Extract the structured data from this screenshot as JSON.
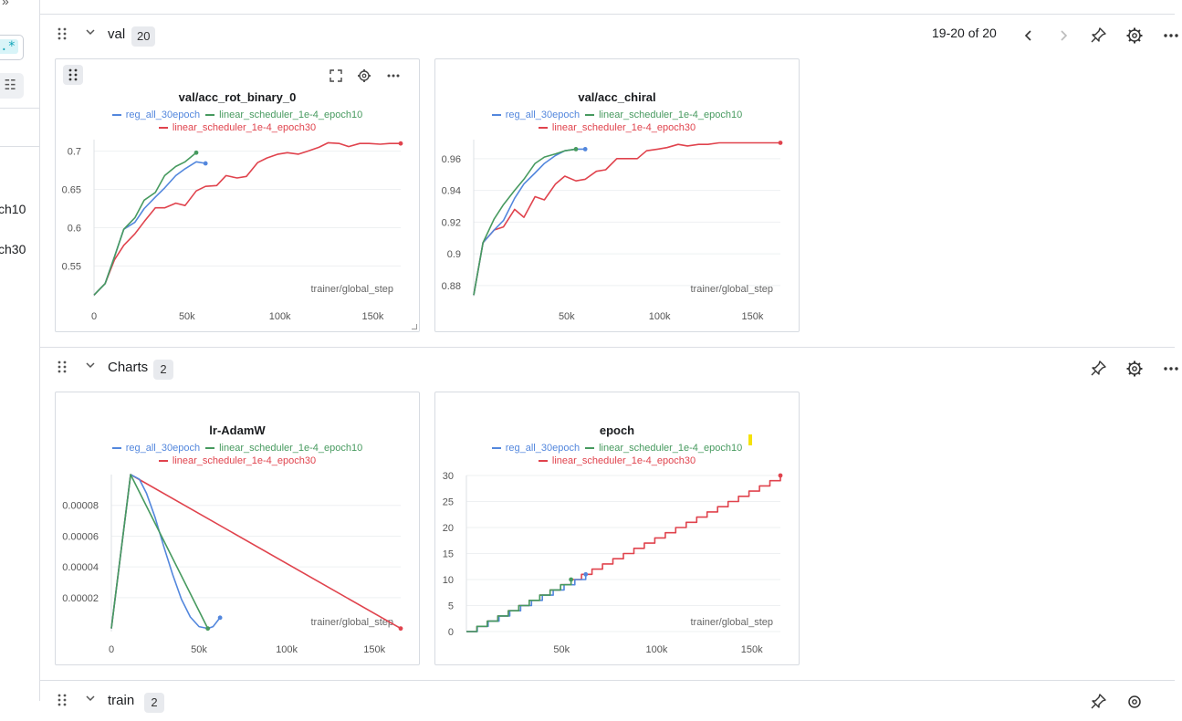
{
  "sidebar": {
    "regex_label": ".*",
    "legend_tail": [
      "ch10",
      "ch30"
    ]
  },
  "sections": [
    {
      "title": "val",
      "count": "20",
      "pager": "19-20 of 20"
    },
    {
      "title": "Charts",
      "count": "2"
    },
    {
      "title": "train",
      "count": "2"
    }
  ],
  "legend_labels": {
    "a": "reg_all_30epoch",
    "b": "linear_scheduler_1e-4_epoch10",
    "c": "linear_scheduler_1e-4_epoch30"
  },
  "colors": {
    "a": "#5387dd",
    "b": "#479a5f",
    "c": "#e0434d"
  },
  "panels": [
    {
      "title": "val/acc_rot_binary_0",
      "xlabel": "trainer/global_step"
    },
    {
      "title": "val/acc_chiral",
      "xlabel": "trainer/global_step"
    },
    {
      "title": "lr-AdamW",
      "xlabel": "trainer/global_step"
    },
    {
      "title": "epoch",
      "xlabel": "trainer/global_step"
    }
  ],
  "chart_data": [
    {
      "type": "line",
      "title": "val/acc_rot_binary_0",
      "xlabel": "trainer/global_step",
      "xlim": [
        0,
        165000
      ],
      "ylim": [
        0.51,
        0.715
      ],
      "xticks": [
        0,
        50000,
        100000,
        150000
      ],
      "xtick_labels": [
        "0",
        "50k",
        "100k",
        "150k"
      ],
      "yticks": [
        0.55,
        0.6,
        0.65,
        0.7
      ],
      "ytick_labels": [
        "0.55",
        "0.6",
        "0.65",
        "0.7"
      ],
      "series": [
        {
          "name": "reg_all_30epoch",
          "x": [
            0,
            6000,
            11000,
            16000,
            22000,
            27000,
            33000,
            38000,
            44000,
            49000,
            55000,
            60000
          ],
          "y": [
            0.512,
            0.527,
            0.562,
            0.598,
            0.607,
            0.625,
            0.64,
            0.652,
            0.668,
            0.677,
            0.686,
            0.684
          ]
        },
        {
          "name": "linear_scheduler_1e-4_epoch10",
          "x": [
            0,
            6000,
            11000,
            16000,
            22000,
            27000,
            33000,
            38000,
            44000,
            49000,
            55000
          ],
          "y": [
            0.512,
            0.527,
            0.562,
            0.598,
            0.613,
            0.636,
            0.646,
            0.668,
            0.68,
            0.686,
            0.698
          ]
        },
        {
          "name": "linear_scheduler_1e-4_epoch30",
          "x": [
            0,
            6000,
            11000,
            16000,
            22000,
            27000,
            33000,
            38000,
            44000,
            49000,
            55000,
            60000,
            66000,
            71000,
            77000,
            82000,
            88000,
            93000,
            99000,
            104000,
            110000,
            115000,
            121000,
            126000,
            132000,
            137000,
            143000,
            148000,
            154000,
            159000,
            165000
          ],
          "y": [
            0.512,
            0.527,
            0.558,
            0.577,
            0.592,
            0.608,
            0.626,
            0.626,
            0.632,
            0.629,
            0.648,
            0.654,
            0.655,
            0.668,
            0.665,
            0.667,
            0.685,
            0.691,
            0.696,
            0.698,
            0.696,
            0.7,
            0.705,
            0.711,
            0.71,
            0.706,
            0.71,
            0.71,
            0.709,
            0.71,
            0.71
          ]
        }
      ]
    },
    {
      "type": "line",
      "title": "val/acc_chiral",
      "xlabel": "trainer/global_step",
      "xlim": [
        0,
        165000
      ],
      "ylim": [
        0.873,
        0.972
      ],
      "xticks": [
        50000,
        100000,
        150000
      ],
      "xtick_labels": [
        "50k",
        "100k",
        "150k"
      ],
      "yticks": [
        0.88,
        0.9,
        0.92,
        0.94,
        0.96
      ],
      "ytick_labels": [
        "0.88",
        "0.9",
        "0.92",
        "0.94",
        "0.96"
      ],
      "series": [
        {
          "name": "reg_all_30epoch",
          "x": [
            0,
            5000,
            11000,
            16000,
            22000,
            27000,
            33000,
            38000,
            44000,
            49000,
            55000,
            60000
          ],
          "y": [
            0.874,
            0.907,
            0.915,
            0.921,
            0.935,
            0.944,
            0.951,
            0.957,
            0.962,
            0.965,
            0.966,
            0.966
          ]
        },
        {
          "name": "linear_scheduler_1e-4_epoch10",
          "x": [
            0,
            5000,
            11000,
            16000,
            22000,
            27000,
            33000,
            38000,
            44000,
            49000,
            55000
          ],
          "y": [
            0.874,
            0.907,
            0.922,
            0.931,
            0.94,
            0.947,
            0.957,
            0.961,
            0.963,
            0.965,
            0.966
          ]
        },
        {
          "name": "linear_scheduler_1e-4_epoch30",
          "x": [
            0,
            5000,
            11000,
            16000,
            22000,
            27000,
            33000,
            38000,
            44000,
            49000,
            55000,
            60000,
            66000,
            71000,
            77000,
            82000,
            88000,
            93000,
            99000,
            104000,
            110000,
            115000,
            121000,
            126000,
            132000,
            137000,
            143000,
            148000,
            154000,
            159000,
            165000
          ],
          "y": [
            0.874,
            0.907,
            0.915,
            0.917,
            0.928,
            0.923,
            0.936,
            0.934,
            0.944,
            0.949,
            0.946,
            0.947,
            0.952,
            0.953,
            0.96,
            0.96,
            0.96,
            0.965,
            0.966,
            0.967,
            0.969,
            0.968,
            0.969,
            0.969,
            0.97,
            0.97,
            0.97,
            0.97,
            0.97,
            0.97,
            0.97
          ]
        }
      ]
    },
    {
      "type": "line",
      "title": "lr-AdamW",
      "xlabel": "trainer/global_step",
      "xlim": [
        0,
        165000
      ],
      "ylim": [
        -2e-06,
        0.0001
      ],
      "xticks": [
        0,
        50000,
        100000,
        150000
      ],
      "xtick_labels": [
        "0",
        "50k",
        "100k",
        "150k"
      ],
      "yticks": [
        2e-05,
        4e-05,
        6e-05,
        8e-05
      ],
      "ytick_labels": [
        "0.00002",
        "0.00004",
        "0.00006",
        "0.00008"
      ],
      "series": [
        {
          "name": "reg_all_30epoch",
          "x": [
            0,
            11000,
            16000,
            20000,
            25000,
            30000,
            35000,
            40000,
            45000,
            50000,
            55000,
            58000,
            62000
          ],
          "y": [
            0,
            0.0001,
            9.7e-05,
            8.8e-05,
            7.2e-05,
            5.3e-05,
            3.5e-05,
            1.9e-05,
            7.5e-06,
            1.2e-06,
            0,
            1.2e-06,
            7e-06
          ]
        },
        {
          "name": "linear_scheduler_1e-4_epoch10",
          "x": [
            0,
            11000,
            55000
          ],
          "y": [
            0,
            0.0001,
            0
          ]
        },
        {
          "name": "linear_scheduler_1e-4_epoch30",
          "x": [
            0,
            11000,
            165000
          ],
          "y": [
            0,
            0.0001,
            0
          ]
        }
      ]
    },
    {
      "type": "line",
      "title": "epoch",
      "xlabel": "trainer/global_step",
      "xlim": [
        0,
        165000
      ],
      "ylim": [
        0,
        30
      ],
      "xticks": [
        50000,
        100000,
        150000
      ],
      "xtick_labels": [
        "50k",
        "100k",
        "150k"
      ],
      "yticks": [
        0,
        5,
        10,
        15,
        20,
        25,
        30
      ],
      "ytick_labels": [
        "0",
        "5",
        "10",
        "15",
        "20",
        "25",
        "30"
      ],
      "step": 5500,
      "series": [
        {
          "name": "reg_all_30epoch",
          "epochs": 11,
          "step_x": 5700
        },
        {
          "name": "linear_scheduler_1e-4_epoch10",
          "epochs": 10,
          "step_x": 5500
        },
        {
          "name": "linear_scheduler_1e-4_epoch30",
          "epochs": 30,
          "step_x": 5500
        }
      ]
    }
  ]
}
